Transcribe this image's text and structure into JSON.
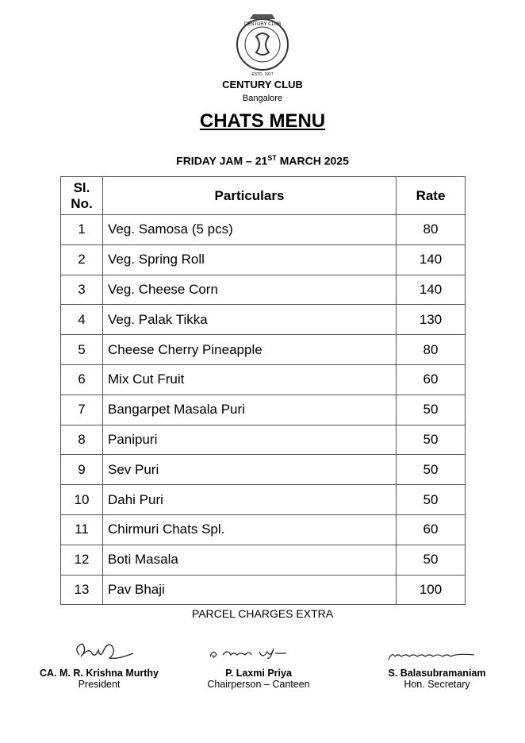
{
  "header": {
    "logo_top": "CENTURY CLUB",
    "logo_bottom": "ESTD. 1917",
    "club": "CENTURY CLUB",
    "city": "Bangalore",
    "title": "CHATS MENU",
    "subtitle": {
      "before": "FRIDAY JAM – 21",
      "sup": "ST",
      "after": " MARCH 2025"
    }
  },
  "table": {
    "columns": [
      "Sl. No.",
      "Particulars",
      "Rate"
    ],
    "rows": [
      [
        1,
        "Veg. Samosa (5 pcs)",
        80
      ],
      [
        2,
        "Veg. Spring Roll",
        140
      ],
      [
        3,
        "Veg. Cheese Corn",
        140
      ],
      [
        4,
        "Veg. Palak Tikka",
        130
      ],
      [
        5,
        "Cheese Cherry Pineapple",
        80
      ],
      [
        6,
        "Mix Cut Fruit",
        60
      ],
      [
        7,
        "Bangarpet Masala Puri",
        50
      ],
      [
        8,
        "Panipuri",
        50
      ],
      [
        9,
        "Sev Puri",
        50
      ],
      [
        10,
        "Dahi Puri",
        50
      ],
      [
        11,
        "Chirmuri Chats Spl.",
        60
      ],
      [
        12,
        "Boti Masala",
        50
      ],
      [
        13,
        "Pav Bhaji",
        100
      ]
    ]
  },
  "note": "PARCEL CHARGES EXTRA",
  "signatories": [
    {
      "name": "CA. M. R. Krishna Murthy",
      "role": "President"
    },
    {
      "name": "P. Laxmi Priya",
      "role": "Chairperson – Canteen"
    },
    {
      "name": "S. Balasubramaniam",
      "role": "Hon. Secretary"
    }
  ]
}
